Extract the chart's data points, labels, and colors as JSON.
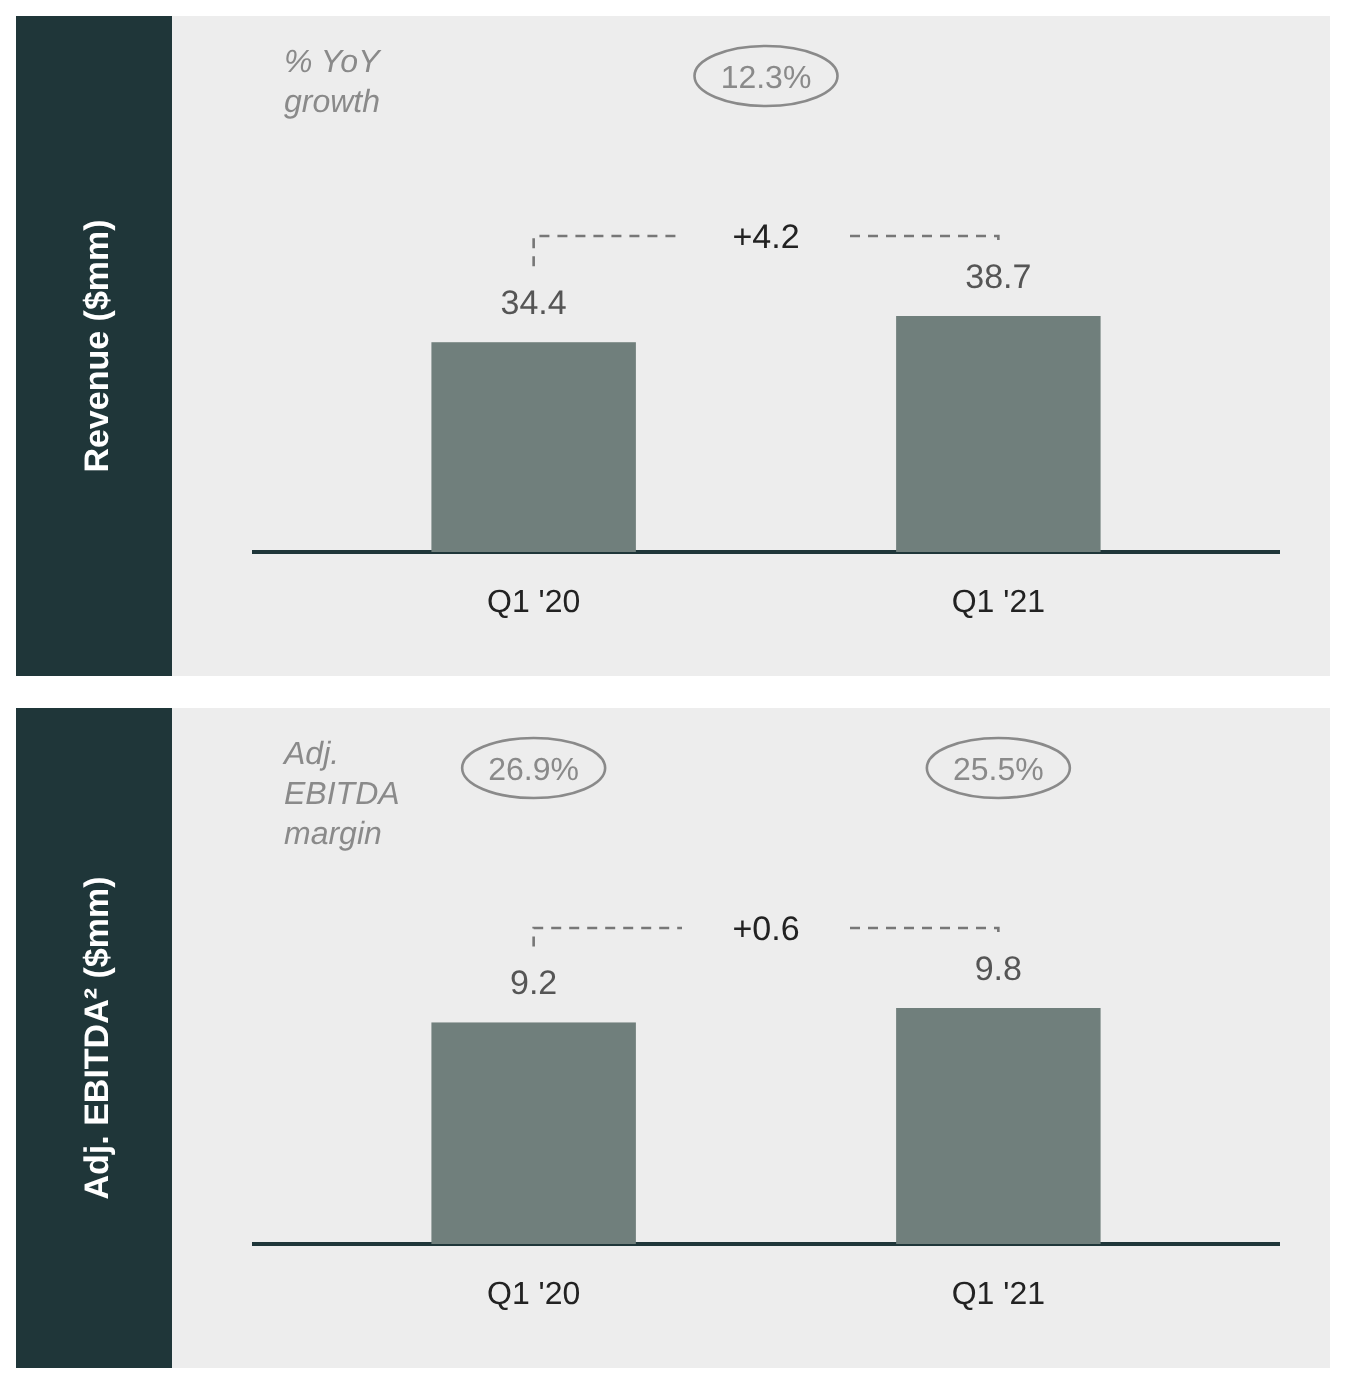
{
  "chart_data": [
    {
      "type": "bar",
      "ylabel": "Revenue ($mm)",
      "categories": [
        "Q1 '20",
        "Q1 '21"
      ],
      "values": [
        34.4,
        38.7
      ],
      "color": "#707f7c",
      "data_labels": true,
      "annotations": [
        "% YoY growth",
        "12.3%",
        "+4.2"
      ]
    },
    {
      "type": "bar",
      "ylabel": "Adj. EBITDA² ($mm)",
      "categories": [
        "Q1 '20",
        "Q1 '21"
      ],
      "values": [
        9.2,
        9.8
      ],
      "color": "#707f7c",
      "data_labels": true,
      "annotations": [
        "Adj. EBITDA margin",
        "26.9%",
        "25.5%",
        "+0.6"
      ]
    }
  ]
}
